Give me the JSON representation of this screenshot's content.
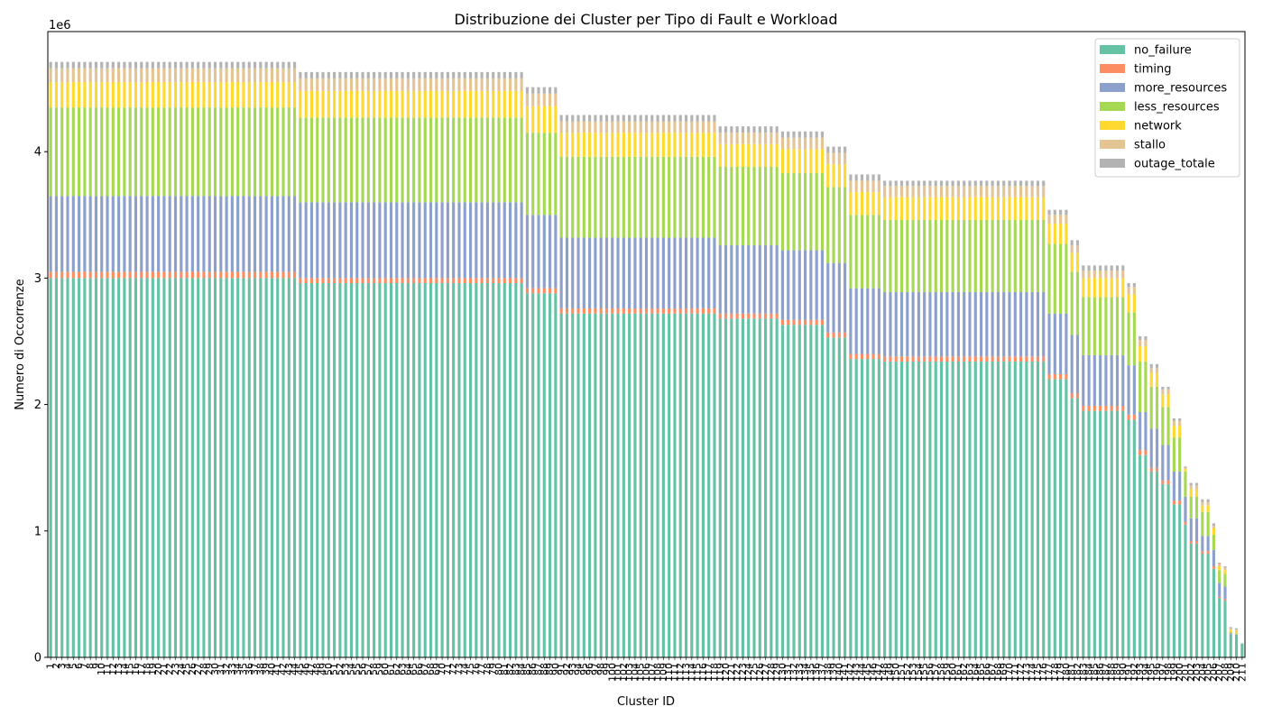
{
  "chart_data": {
    "type": "bar",
    "stacked": true,
    "title": "Distribuzione dei Cluster per Tipo di Fault e Workload",
    "xlabel": "Cluster ID",
    "ylabel": "Numero di Occorrenze",
    "y_offset_text": "1e6",
    "ylim": [
      0,
      4.95
    ],
    "y_unit": "millions",
    "yticks": [
      "0",
      "1",
      "2",
      "3",
      "4"
    ],
    "grid": false,
    "legend_position": "top-right",
    "series": [
      {
        "name": "no_failure",
        "color": "#66c2a5"
      },
      {
        "name": "timing",
        "color": "#fc8d62"
      },
      {
        "name": "more_resources",
        "color": "#8da0cb"
      },
      {
        "name": "less_resources",
        "color": "#a6d854"
      },
      {
        "name": "network",
        "color": "#ffd92f"
      },
      {
        "name": "stallo",
        "color": "#e5c494"
      },
      {
        "name": "outage_totale",
        "color": "#b3b3b3"
      }
    ],
    "categories_note": "Cluster IDs 1 to 211",
    "cluster_groups": [
      {
        "from": 1,
        "to": 44,
        "values": [
          3.0,
          0.05,
          0.6,
          0.7,
          0.2,
          0.11,
          0.05
        ]
      },
      {
        "from": 45,
        "to": 84,
        "values": [
          2.96,
          0.04,
          0.6,
          0.67,
          0.21,
          0.1,
          0.05
        ]
      },
      {
        "from": 85,
        "to": 90,
        "values": [
          2.88,
          0.04,
          0.58,
          0.65,
          0.21,
          0.1,
          0.05
        ]
      },
      {
        "from": 91,
        "to": 118,
        "values": [
          2.72,
          0.04,
          0.56,
          0.64,
          0.19,
          0.09,
          0.05
        ]
      },
      {
        "from": 119,
        "to": 129,
        "values": [
          2.68,
          0.04,
          0.54,
          0.62,
          0.18,
          0.09,
          0.05
        ]
      },
      {
        "from": 130,
        "to": 137,
        "values": [
          2.63,
          0.04,
          0.55,
          0.61,
          0.19,
          0.09,
          0.05
        ]
      },
      {
        "from": 138,
        "to": 141,
        "values": [
          2.53,
          0.04,
          0.55,
          0.6,
          0.18,
          0.09,
          0.05
        ]
      },
      {
        "from": 142,
        "to": 147,
        "values": [
          2.36,
          0.04,
          0.52,
          0.58,
          0.18,
          0.09,
          0.05
        ]
      },
      {
        "from": 148,
        "to": 176,
        "values": [
          2.34,
          0.04,
          0.51,
          0.57,
          0.18,
          0.09,
          0.04
        ]
      },
      {
        "from": 177,
        "to": 180,
        "values": [
          2.2,
          0.04,
          0.48,
          0.55,
          0.16,
          0.07,
          0.04
        ]
      },
      {
        "from": 181,
        "to": 182,
        "values": [
          2.05,
          0.04,
          0.46,
          0.5,
          0.15,
          0.06,
          0.04
        ]
      },
      {
        "from": 183,
        "to": 190,
        "values": [
          1.95,
          0.04,
          0.4,
          0.46,
          0.15,
          0.06,
          0.04
        ]
      },
      {
        "from": 191,
        "to": 192,
        "values": [
          1.88,
          0.04,
          0.39,
          0.42,
          0.14,
          0.06,
          0.03
        ]
      },
      {
        "from": 193,
        "to": 194,
        "values": [
          1.6,
          0.04,
          0.3,
          0.4,
          0.12,
          0.05,
          0.03
        ]
      },
      {
        "from": 195,
        "to": 196,
        "values": [
          1.47,
          0.03,
          0.31,
          0.33,
          0.11,
          0.04,
          0.03
        ]
      },
      {
        "from": 197,
        "to": 198,
        "values": [
          1.37,
          0.03,
          0.28,
          0.3,
          0.1,
          0.04,
          0.02
        ]
      },
      {
        "from": 199,
        "to": 200,
        "values": [
          1.21,
          0.03,
          0.23,
          0.27,
          0.09,
          0.04,
          0.02
        ]
      },
      {
        "from": 201,
        "to": 201,
        "values": [
          1.05,
          0.02,
          0.2,
          0.2,
          0.02,
          0.01,
          0.01
        ]
      },
      {
        "from": 202,
        "to": 203,
        "values": [
          0.9,
          0.02,
          0.18,
          0.17,
          0.06,
          0.03,
          0.02
        ]
      },
      {
        "from": 204,
        "to": 205,
        "values": [
          0.82,
          0.02,
          0.12,
          0.19,
          0.05,
          0.03,
          0.02
        ]
      },
      {
        "from": 206,
        "to": 206,
        "values": [
          0.7,
          0.02,
          0.13,
          0.12,
          0.05,
          0.02,
          0.02
        ]
      },
      {
        "from": 207,
        "to": 207,
        "values": [
          0.47,
          0.01,
          0.11,
          0.1,
          0.03,
          0.02,
          0.01
        ]
      },
      {
        "from": 208,
        "to": 208,
        "values": [
          0.45,
          0.01,
          0.1,
          0.1,
          0.03,
          0.02,
          0.01
        ]
      },
      {
        "from": 209,
        "to": 209,
        "values": [
          0.18,
          0.0,
          0.01,
          0.01,
          0.02,
          0.01,
          0.01
        ]
      },
      {
        "from": 210,
        "to": 210,
        "values": [
          0.17,
          0.0,
          0.01,
          0.01,
          0.02,
          0.01,
          0.01
        ]
      },
      {
        "from": 211,
        "to": 211,
        "values": [
          0.11,
          0.0,
          0.0,
          0.0,
          0.0,
          0.0,
          0.0
        ]
      }
    ]
  }
}
